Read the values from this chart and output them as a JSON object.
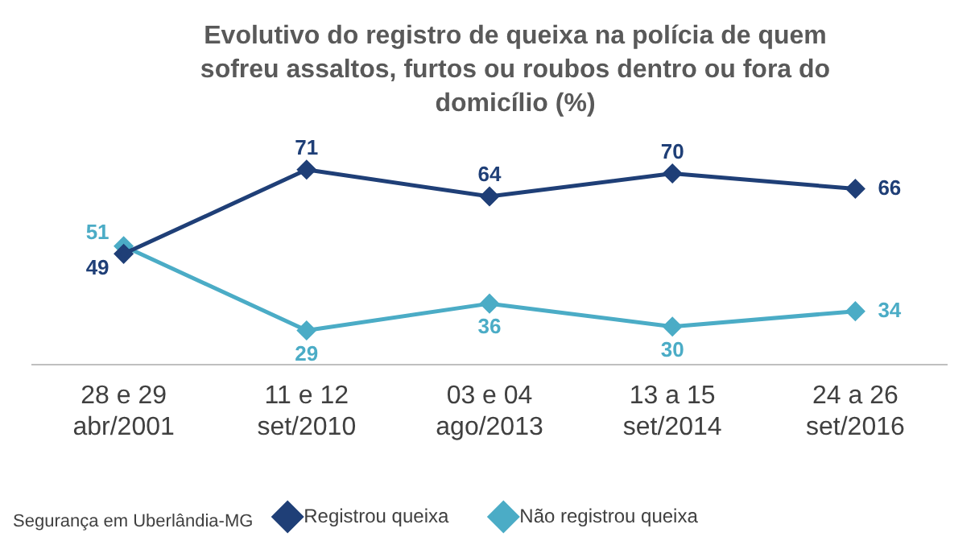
{
  "chart_data": {
    "type": "line",
    "title": "Evolutivo do registro de queixa na polícia de quem sofreu assaltos, furtos ou roubos dentro ou fora do domicílio (%)",
    "categories": [
      "28 e 29 abr/2001",
      "11 e 12 set/2010",
      "03 e 04 ago/2013",
      "13 a 15 set/2014",
      "24 a 26 set/2016"
    ],
    "series": [
      {
        "name": "Registrou queixa",
        "color": "#1f3f77",
        "values": [
          49,
          71,
          64,
          70,
          66
        ]
      },
      {
        "name": "Não registrou queixa",
        "color": "#4bacc6",
        "values": [
          51,
          29,
          36,
          30,
          34
        ]
      }
    ],
    "data_labels": true,
    "marker": "diamond",
    "legend": "bottom",
    "grid": false,
    "annotations": [
      "Segurança em Uberlândia-MG"
    ]
  }
}
